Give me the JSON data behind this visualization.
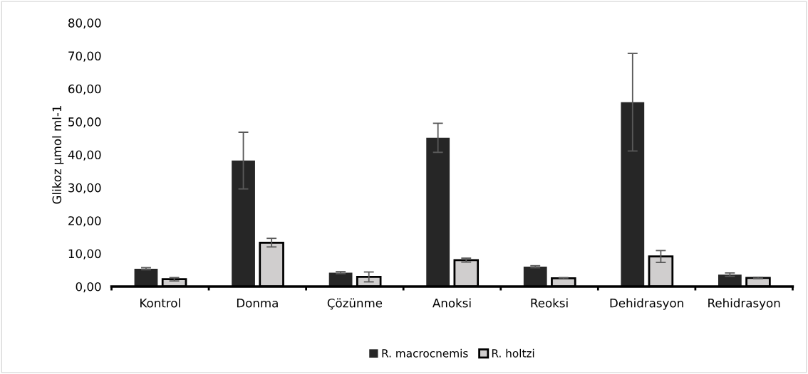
{
  "chart_data": {
    "type": "bar",
    "ylabel": "Glikoz µmol ml-1",
    "categories": [
      "Kontrol",
      "Donma",
      "Çözünme",
      "Anoksi",
      "Reoksi",
      "Dehidrasyon",
      "Rehidrasyon"
    ],
    "series": [
      {
        "name": "R. macrocnemis",
        "color": "#262626",
        "values": [
          5.4,
          38.2,
          4.2,
          45.1,
          6.0,
          55.9,
          3.6
        ],
        "errors": [
          0.3,
          8.6,
          0.3,
          4.4,
          0.3,
          14.8,
          0.5
        ]
      },
      {
        "name": "R. holtzi",
        "color": "#d0cece",
        "values": [
          2.2,
          13.3,
          2.9,
          8.0,
          2.5,
          9.1,
          2.6
        ],
        "errors": [
          0.5,
          1.3,
          1.5,
          0.6,
          0.2,
          1.8,
          0.2
        ]
      }
    ],
    "ylim": [
      0,
      80
    ],
    "yticks": [
      {
        "value": 0,
        "label": "0,00"
      },
      {
        "value": 10,
        "label": "10,00"
      },
      {
        "value": 20,
        "label": "20,00"
      },
      {
        "value": 30,
        "label": "30,00"
      },
      {
        "value": 40,
        "label": "40,00"
      },
      {
        "value": 50,
        "label": "50,00"
      },
      {
        "value": 60,
        "label": "60,00"
      },
      {
        "value": 70,
        "label": "70,00"
      },
      {
        "value": 80,
        "label": "80,00"
      }
    ],
    "grid": false,
    "legend": "bottom"
  }
}
